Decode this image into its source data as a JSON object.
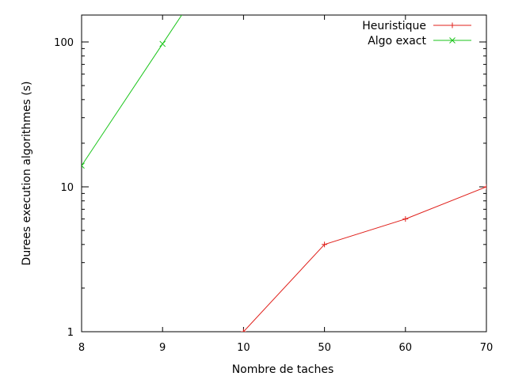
{
  "chart_data": {
    "type": "line",
    "categories": [
      "8",
      "9",
      "10",
      "50",
      "60",
      "70"
    ],
    "xlabel": "Nombre de taches",
    "ylabel": "Durees execution algorithmes (s)",
    "yscale": "log",
    "ylim": [
      1,
      150
    ],
    "yticks": [
      1,
      10,
      100
    ],
    "ytick_labels": [
      "1",
      "10",
      "100"
    ],
    "grid": false,
    "legend_position": "top-right",
    "series": [
      {
        "name": "Heuristique",
        "color": "#e0201b",
        "marker": "plus",
        "values": [
          null,
          null,
          1,
          4,
          6,
          10
        ]
      },
      {
        "name": "Algo exact",
        "color": "#1bc51b",
        "marker": "cross",
        "values": [
          14,
          97,
          null,
          null,
          null,
          null
        ],
        "extends_beyond_top": true
      }
    ]
  }
}
